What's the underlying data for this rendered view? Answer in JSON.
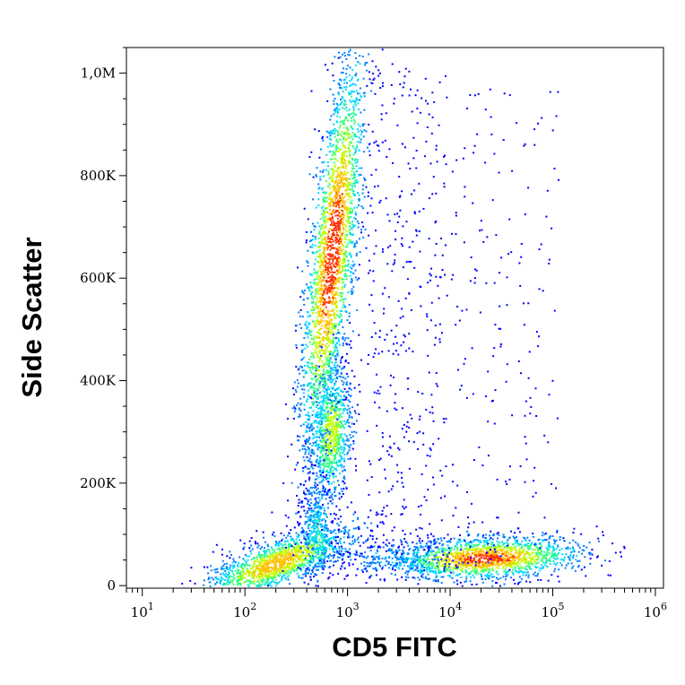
{
  "chart_data": {
    "type": "scatter",
    "title": "",
    "xlabel": "CD5 FITC",
    "ylabel": "Side Scatter",
    "x_scale": "log",
    "x_range": [
      7,
      1200000
    ],
    "y_range": [
      -5000,
      1050000
    ],
    "x_ticks": [
      {
        "value": 10,
        "base": "10",
        "exp": "1"
      },
      {
        "value": 100,
        "base": "10",
        "exp": "2"
      },
      {
        "value": 1000,
        "base": "10",
        "exp": "3"
      },
      {
        "value": 10000,
        "base": "10",
        "exp": "4"
      },
      {
        "value": 100000,
        "base": "10",
        "exp": "5"
      },
      {
        "value": 1000000,
        "base": "10",
        "exp": "6"
      }
    ],
    "y_ticks": [
      {
        "value": 0,
        "label": "0"
      },
      {
        "value": 200000,
        "label": "200K"
      },
      {
        "value": 400000,
        "label": "400K"
      },
      {
        "value": 600000,
        "label": "600K"
      },
      {
        "value": 800000,
        "label": "800K"
      },
      {
        "value": 1000000,
        "label": "1,0M"
      }
    ],
    "grid": false,
    "legend": "none",
    "density_colors": [
      "#0000ff",
      "#0080ff",
      "#00d8ff",
      "#30ff80",
      "#c0ff00",
      "#ffc000",
      "#ff3000"
    ],
    "populations": [
      {
        "x_center": 200,
        "y_center": 45000,
        "density": "high"
      },
      {
        "x_center": 680,
        "y_center": 300000,
        "density": "medium"
      },
      {
        "x_center": 700,
        "y_center": 650000,
        "density": "high"
      },
      {
        "x_center": 22000,
        "y_center": 55000,
        "density": "high"
      }
    ]
  }
}
